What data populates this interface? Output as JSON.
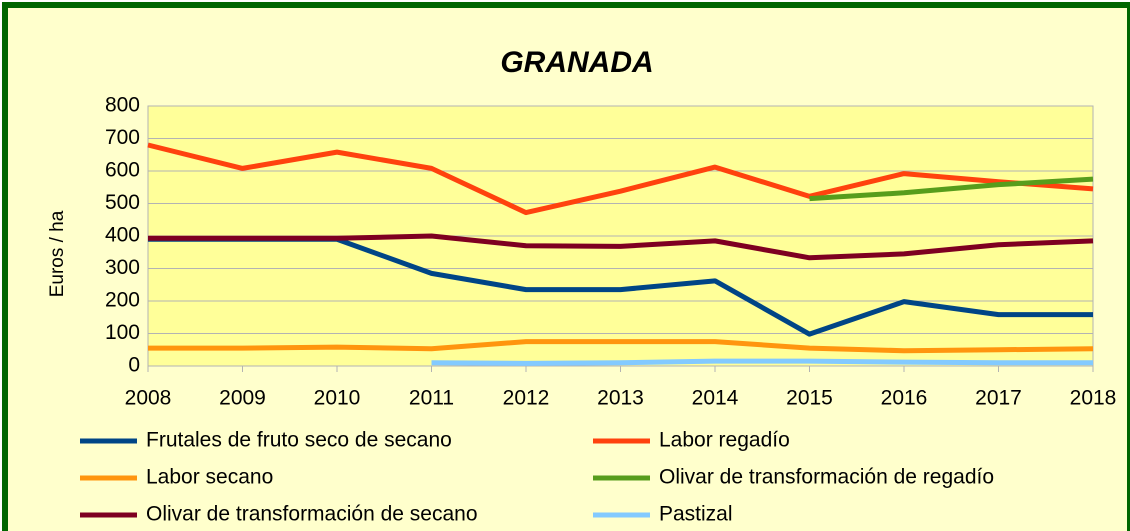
{
  "chart_data": {
    "type": "line",
    "title": "GRANADA",
    "y_label": "Euros / ha",
    "x": [
      2008,
      2009,
      2010,
      2011,
      2012,
      2013,
      2014,
      2015,
      2016,
      2017,
      2018
    ],
    "xlim": [
      2008,
      2018
    ],
    "xticks": [
      2008,
      2009,
      2010,
      2011,
      2012,
      2013,
      2014,
      2015,
      2016,
      2017,
      2018
    ],
    "ylim": [
      0,
      800
    ],
    "yticks": [
      0,
      100,
      200,
      300,
      400,
      500,
      600,
      700,
      800
    ],
    "grid": true,
    "legend": "bottom",
    "series": [
      {
        "name": "Frutales de fruto seco de secano",
        "color": "#004586",
        "values": [
          390,
          390,
          390,
          285,
          235,
          235,
          262,
          98,
          198,
          158,
          158
        ]
      },
      {
        "name": "Labor regadío",
        "color": "#ff420e",
        "values": [
          680,
          608,
          658,
          608,
          472,
          538,
          612,
          522,
          592,
          567,
          545
        ]
      },
      {
        "name": "Labor secano",
        "color": "#ff950e",
        "values": [
          55,
          55,
          58,
          53,
          75,
          75,
          75,
          55,
          47,
          50,
          53
        ]
      },
      {
        "name": "Olivar de transformación de regadío",
        "color": "#579d1c",
        "values": [
          null,
          null,
          null,
          null,
          null,
          null,
          null,
          515,
          533,
          558,
          575
        ]
      },
      {
        "name": "Olivar de transformación de secano",
        "color": "#7e0021",
        "values": [
          393,
          393,
          393,
          400,
          370,
          368,
          385,
          333,
          345,
          373,
          385
        ]
      },
      {
        "name": "Pastizal",
        "color": "#83caff",
        "values": [
          null,
          null,
          null,
          10,
          8,
          10,
          15,
          15,
          12,
          10,
          10
        ]
      }
    ]
  }
}
